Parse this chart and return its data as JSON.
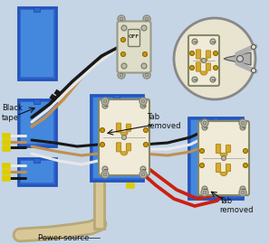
{
  "bg_color": "#c5d5e5",
  "box_blue_edge": "#2255bb",
  "box_blue_fill": "#3366cc",
  "box_blue_inner": "#4488dd",
  "outlet_face": "#f0ead8",
  "outlet_slot_dark": "#b89020",
  "outlet_slot_light": "#d4aa30",
  "wire_black": "#181818",
  "wire_white": "#e8e8e8",
  "wire_red": "#cc2010",
  "wire_tan": "#c09050",
  "wire_gray": "#aaaaaa",
  "wire_gray2": "#c8b888",
  "conduit_outer": "#b8a878",
  "conduit_inner": "#d8c898",
  "switch_face": "#ddddc8",
  "switch_toggle": "#e0e0c8",
  "screw_face": "#bbbbaa",
  "screw_edge": "#666655",
  "brass_screw": "#cc9900",
  "circle_bg": "#e8e4d0",
  "circle_edge": "#888888",
  "plier_body": "#b0b0b0",
  "plier_edge": "#555555",
  "yellow_cap": "#ddcc00",
  "text_color": "#111111",
  "label_black_tape": "Black\ntape",
  "label_tab_removed1": "Tab\nremoved",
  "label_tab_removed2": "Tab\nremoved",
  "label_power_source": "Power source",
  "label_off": "OFF"
}
